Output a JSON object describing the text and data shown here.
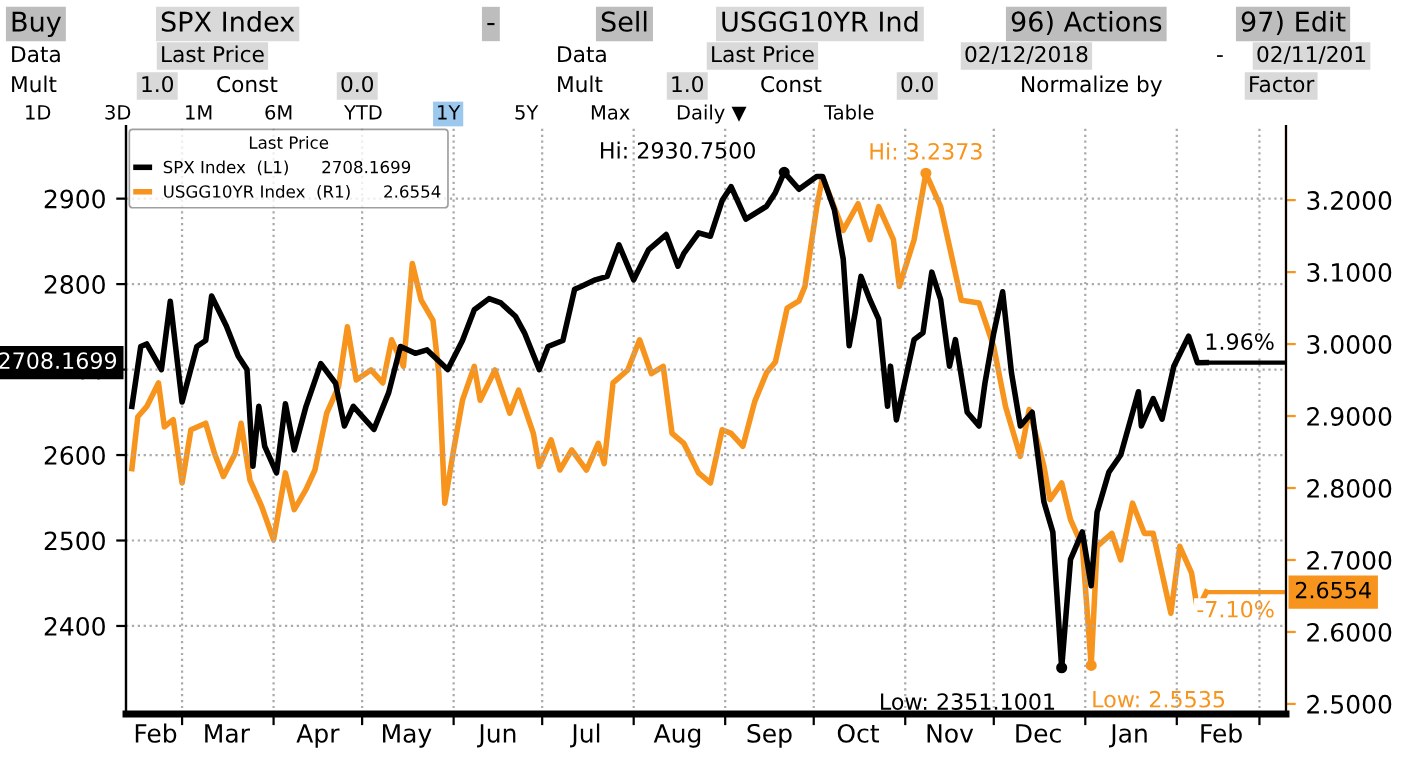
{
  "chart_data": {
    "type": "line",
    "legend_title": "Last Price",
    "legend": "top left",
    "grid": true,
    "line_style": "solid",
    "marker": "none",
    "xlim": [
      "2018-02-10",
      "2019-03-10"
    ],
    "xticks": [
      {
        "value": "2018-03-01",
        "label": null
      },
      {
        "value": "2018-04-01",
        "label": null
      },
      {
        "value": "2018-05-01",
        "label": null
      },
      {
        "value": "2018-06-01",
        "label": null
      },
      {
        "value": "2018-07-01",
        "label": null
      },
      {
        "value": "2018-08-01",
        "label": null
      },
      {
        "value": "2018-09-01",
        "label": null
      },
      {
        "value": "2018-10-01",
        "label": null
      },
      {
        "value": "2018-11-01",
        "label": null
      },
      {
        "value": "2018-12-01",
        "label": null
      },
      {
        "value": "2019-01-01",
        "label": null
      },
      {
        "value": "2019-02-01",
        "label": null
      },
      {
        "value": "2019-03-01",
        "label": null
      },
      {
        "value": "2018-02-20",
        "label": "Feb"
      },
      {
        "value": "2018-03-16",
        "label": "Mar"
      },
      {
        "value": "2018-04-16",
        "label": "Apr"
      },
      {
        "value": "2018-05-16",
        "label": "May"
      },
      {
        "value": "2018-06-16",
        "label": "Jun"
      },
      {
        "value": "2018-07-16",
        "label": "Jul"
      },
      {
        "value": "2018-08-16",
        "label": "Aug"
      },
      {
        "value": "2018-09-16",
        "label": "Sep"
      },
      {
        "value": "2018-10-16",
        "label": "Oct"
      },
      {
        "value": "2018-11-16",
        "label": "Nov"
      },
      {
        "value": "2018-12-16",
        "label": "Dec"
      },
      {
        "value": "2019-01-16",
        "label": "Jan"
      },
      {
        "value": "2019-02-16",
        "label": "Feb"
      }
    ],
    "ylim": [
      2297,
      2985
    ],
    "yticks": [
      2400,
      2500,
      2600,
      2700,
      2800,
      2900
    ],
    "y2lim": [
      2.486,
      3.303
    ],
    "y2ticks": [
      {
        "value": 2.5,
        "label": "2.5000"
      },
      {
        "value": 2.6,
        "label": "2.6000"
      },
      {
        "value": 2.7,
        "label": "2.7000"
      },
      {
        "value": 2.8,
        "label": "2.8000"
      },
      {
        "value": 2.9,
        "label": "2.9000"
      },
      {
        "value": 3.0,
        "label": "3.0000"
      },
      {
        "value": 3.1,
        "label": "3.1000"
      },
      {
        "value": 3.2,
        "label": "3.2000"
      }
    ],
    "series": [
      {
        "name": "SPX Index  (L1)      2708.1699",
        "color": "#000000",
        "x": [
          "2018-02-12",
          "2018-02-15",
          "2018-02-17",
          "2018-02-22",
          "2018-02-25",
          "2018-03-01",
          "2018-03-06",
          "2018-03-09",
          "2018-03-11",
          "2018-03-16",
          "2018-03-20",
          "2018-03-23",
          "2018-03-25",
          "2018-03-27",
          "2018-03-29",
          "2018-04-02",
          "2018-04-05",
          "2018-04-08",
          "2018-04-12",
          "2018-04-17",
          "2018-04-22",
          "2018-04-25",
          "2018-04-28",
          "2018-05-05",
          "2018-05-10",
          "2018-05-14",
          "2018-05-19",
          "2018-05-23",
          "2018-05-30",
          "2018-06-04",
          "2018-06-08",
          "2018-06-13",
          "2018-06-17",
          "2018-06-22",
          "2018-06-25",
          "2018-06-30",
          "2018-07-03",
          "2018-07-08",
          "2018-07-12",
          "2018-07-14",
          "2018-07-19",
          "2018-07-23",
          "2018-07-27",
          "2018-08-01",
          "2018-08-06",
          "2018-08-12",
          "2018-08-16",
          "2018-08-18",
          "2018-08-23",
          "2018-08-27",
          "2018-08-31",
          "2018-09-03",
          "2018-09-08",
          "2018-09-15",
          "2018-09-18",
          "2018-09-21",
          "2018-09-26",
          "2018-10-02",
          "2018-10-04",
          "2018-10-08",
          "2018-10-11",
          "2018-10-13",
          "2018-10-15",
          "2018-10-17",
          "2018-10-20",
          "2018-10-23",
          "2018-10-26",
          "2018-10-27",
          "2018-10-29",
          "2018-11-04",
          "2018-11-07",
          "2018-11-10",
          "2018-11-13",
          "2018-11-16",
          "2018-11-18",
          "2018-11-22",
          "2018-11-26",
          "2018-11-28",
          "2018-12-01",
          "2018-12-04",
          "2018-12-07",
          "2018-12-10",
          "2018-12-14",
          "2018-12-18",
          "2018-12-21",
          "2018-12-24",
          "2018-12-27",
          "2018-12-31",
          "2019-01-03",
          "2019-01-05",
          "2019-01-09",
          "2019-01-13",
          "2019-01-19",
          "2019-01-20",
          "2019-01-24",
          "2019-01-27",
          "2019-01-31",
          "2019-02-05",
          "2019-02-08",
          "2019-02-11"
        ],
        "values": [
          2657,
          2727,
          2730,
          2700,
          2780,
          2662,
          2727,
          2734,
          2786,
          2751,
          2716,
          2700,
          2587,
          2657,
          2610,
          2579,
          2660,
          2606,
          2657,
          2707,
          2684,
          2634,
          2657,
          2630,
          2673,
          2727,
          2719,
          2723,
          2700,
          2734,
          2770,
          2783,
          2778,
          2762,
          2743,
          2700,
          2727,
          2734,
          2794,
          2797,
          2805,
          2809,
          2846,
          2805,
          2840,
          2858,
          2821,
          2836,
          2860,
          2856,
          2898,
          2914,
          2876,
          2891,
          2907,
          2930.75,
          2911,
          2926,
          2926,
          2887,
          2829,
          2728,
          2766,
          2809,
          2782,
          2759,
          2657,
          2704,
          2641,
          2735,
          2743,
          2814,
          2782,
          2704,
          2735,
          2650,
          2634,
          2684,
          2743,
          2791,
          2696,
          2634,
          2650,
          2545,
          2510,
          2351.1001,
          2478,
          2510,
          2447,
          2533,
          2580,
          2600,
          2674,
          2634,
          2666,
          2642,
          2704,
          2739,
          2708,
          2708.1699
        ]
      },
      {
        "name": "USGG10YR Index  (R1)      2.6554",
        "color": "#f7941d",
        "axis": "y2",
        "x": [
          "2018-02-12",
          "2018-02-14",
          "2018-02-17",
          "2018-02-21",
          "2018-02-23",
          "2018-02-26",
          "2018-03-01",
          "2018-03-04",
          "2018-03-09",
          "2018-03-12",
          "2018-03-15",
          "2018-03-19",
          "2018-03-21",
          "2018-03-24",
          "2018-03-28",
          "2018-04-01",
          "2018-04-05",
          "2018-04-08",
          "2018-04-12",
          "2018-04-15",
          "2018-04-19",
          "2018-04-23",
          "2018-04-26",
          "2018-04-29",
          "2018-05-04",
          "2018-05-08",
          "2018-05-11",
          "2018-05-15",
          "2018-05-18",
          "2018-05-21",
          "2018-05-25",
          "2018-05-27",
          "2018-05-29",
          "2018-06-01",
          "2018-06-04",
          "2018-06-08",
          "2018-06-10",
          "2018-06-15",
          "2018-06-20",
          "2018-06-23",
          "2018-06-28",
          "2018-06-30",
          "2018-07-04",
          "2018-07-07",
          "2018-07-11",
          "2018-07-16",
          "2018-07-20",
          "2018-07-22",
          "2018-07-25",
          "2018-07-30",
          "2018-08-03",
          "2018-08-07",
          "2018-08-11",
          "2018-08-14",
          "2018-08-18",
          "2018-08-23",
          "2018-08-27",
          "2018-08-31",
          "2018-09-03",
          "2018-09-07",
          "2018-09-11",
          "2018-09-15",
          "2018-09-18",
          "2018-09-22",
          "2018-09-26",
          "2018-09-28",
          "2018-10-02",
          "2018-10-04",
          "2018-10-11",
          "2018-10-16",
          "2018-10-20",
          "2018-10-23",
          "2018-10-28",
          "2018-10-30",
          "2018-11-04",
          "2018-11-08",
          "2018-11-13",
          "2018-11-17",
          "2018-11-20",
          "2018-11-26",
          "2018-12-01",
          "2018-12-05",
          "2018-12-10",
          "2018-12-13",
          "2018-12-18",
          "2018-12-20",
          "2018-12-24",
          "2018-12-27",
          "2018-12-31",
          "2019-01-03",
          "2019-01-05",
          "2019-01-10",
          "2019-01-13",
          "2019-01-17",
          "2019-01-21",
          "2019-01-24",
          "2019-01-30",
          "2019-02-02",
          "2019-02-06",
          "2019-02-08",
          "2019-02-11"
        ],
        "values": [
          2.827,
          2.899,
          2.913,
          2.946,
          2.885,
          2.895,
          2.807,
          2.881,
          2.89,
          2.848,
          2.816,
          2.848,
          2.89,
          2.811,
          2.774,
          2.728,
          2.821,
          2.77,
          2.798,
          2.825,
          2.904,
          2.941,
          3.024,
          2.95,
          2.964,
          2.946,
          3.006,
          2.969,
          3.112,
          3.061,
          3.033,
          2.959,
          2.779,
          2.853,
          2.922,
          2.969,
          2.922,
          2.964,
          2.904,
          2.936,
          2.876,
          2.83,
          2.867,
          2.825,
          2.853,
          2.825,
          2.862,
          2.834,
          2.946,
          2.964,
          3.006,
          2.959,
          2.969,
          2.876,
          2.862,
          2.821,
          2.807,
          2.881,
          2.876,
          2.858,
          2.92,
          2.96,
          2.975,
          3.05,
          3.06,
          3.08,
          3.19,
          3.232,
          3.158,
          3.195,
          3.145,
          3.191,
          3.145,
          3.08,
          3.145,
          3.2373,
          3.191,
          3.117,
          3.061,
          3.057,
          2.996,
          2.913,
          2.844,
          2.909,
          2.83,
          2.784,
          2.807,
          2.756,
          2.719,
          2.5535,
          2.719,
          2.737,
          2.7,
          2.779,
          2.737,
          2.737,
          2.626,
          2.719,
          2.682,
          2.631,
          2.6554
        ]
      }
    ],
    "annotations": [
      {
        "text": "Hi: 2930.7500",
        "x": "2018-09-21",
        "y": 2930.75
      },
      "Hi: 3.2373",
      {
        "text": "Low: 2351.1001",
        "x": "2018-12-24",
        "y": 2351.1001
      },
      "Low: 2.5535",
      {
        "text": "1.96%",
        "x": "2019-02-11",
        "y": 2708.1699
      },
      "-7.10%",
      "2708.1699",
      "2.6554",
      "Buy",
      "SPX Index",
      "-",
      "Sell",
      "USGG10YR Ind",
      "96) Actions",
      "97) Edit",
      "Data",
      "Last Price",
      "Data",
      "Last Price",
      "02/12/2018",
      "-",
      "02/11/201",
      "Mult",
      "1.0",
      "Const",
      "0.0",
      "Mult",
      "1.0",
      "Const",
      "0.0",
      "Normalize by",
      "Factor",
      "1D",
      "3D",
      "1M",
      "6M",
      "YTD",
      "1Y",
      "5Y",
      "Max",
      "Daily ▼",
      "Table"
    ]
  }
}
